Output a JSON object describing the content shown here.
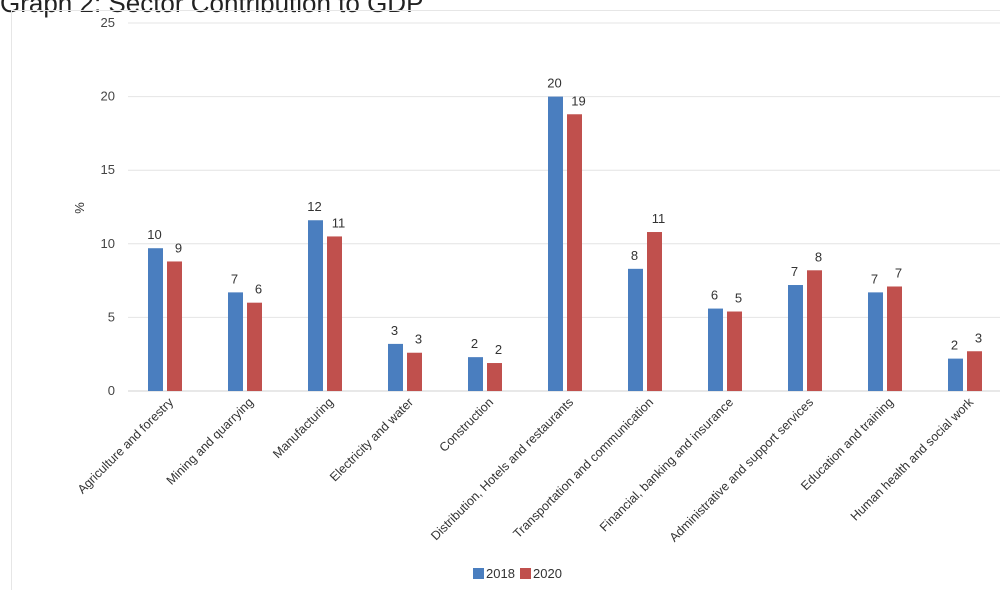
{
  "page_title": "Graph 2: Sector Contribution to GDP",
  "chart_data": {
    "type": "bar",
    "title": "Graph 2: Sector Contribution to GDP",
    "ylabel": "%",
    "xlabel": "",
    "ylim": [
      0,
      25
    ],
    "yticks": [
      0,
      5,
      10,
      15,
      20,
      25
    ],
    "grid": true,
    "legend_position": "bottom",
    "categories": [
      "Agriculture and forestry",
      "Mining and quarrying",
      "Manufacturing",
      "Electricity and water",
      "Construction",
      "Distribution, Hotels and restaurants",
      "Transportation and communication",
      "Financial, banking and insurance",
      "Administrative and support services",
      "Education and training",
      "Human health and social work"
    ],
    "series": [
      {
        "name": "2018",
        "color": "#4a7ebf",
        "values": [
          9.7,
          6.7,
          11.6,
          3.2,
          2.3,
          20.0,
          8.3,
          5.6,
          7.2,
          6.7,
          2.2
        ],
        "labels": [
          "10",
          "7",
          "12",
          "3",
          "2",
          "20",
          "8",
          "6",
          "7",
          "7",
          "2"
        ]
      },
      {
        "name": "2020",
        "color": "#c0504d",
        "values": [
          8.8,
          6.0,
          10.5,
          2.6,
          1.9,
          18.8,
          10.8,
          5.4,
          8.2,
          7.1,
          2.7
        ],
        "labels": [
          "9",
          "6",
          "11",
          "3",
          "2",
          "19",
          "11",
          "5",
          "8",
          "7",
          "3"
        ]
      }
    ]
  }
}
